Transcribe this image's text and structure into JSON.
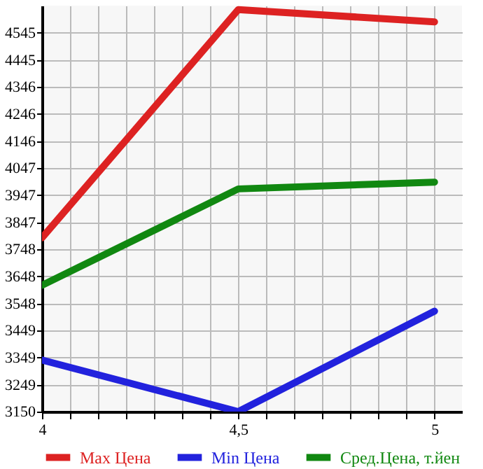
{
  "chart_data": {
    "type": "line",
    "x": [
      4,
      4.5,
      5
    ],
    "series": [
      {
        "name": "Max Цена",
        "color": "#dd2222",
        "values": [
          3790,
          4630,
          4585
        ]
      },
      {
        "name": "Min Цена",
        "color": "#2222dd",
        "values": [
          3340,
          3150,
          3520
        ]
      },
      {
        "name": "Сред.Цена, т.йен",
        "color": "#118811",
        "values": [
          3615,
          3970,
          3995
        ]
      }
    ],
    "xlim": [
      4,
      5.07
    ],
    "xticks": [
      {
        "value": 4,
        "label": "4"
      },
      {
        "value": 4.071,
        "label": null
      },
      {
        "value": 4.143,
        "label": null
      },
      {
        "value": 4.214,
        "label": null
      },
      {
        "value": 4.286,
        "label": null
      },
      {
        "value": 4.357,
        "label": null
      },
      {
        "value": 4.429,
        "label": null
      },
      {
        "value": 4.5,
        "label": "4,5"
      },
      {
        "value": 4.571,
        "label": null
      },
      {
        "value": 4.643,
        "label": null
      },
      {
        "value": 4.714,
        "label": null
      },
      {
        "value": 4.786,
        "label": null
      },
      {
        "value": 4.857,
        "label": null
      },
      {
        "value": 4.929,
        "label": null
      },
      {
        "value": 5,
        "label": "5"
      }
    ],
    "ylim": [
      3150,
      4645
    ],
    "yticks": [
      3150,
      3249,
      3349,
      3449,
      3548,
      3648,
      3748,
      3847,
      3947,
      4047,
      4146,
      4246,
      4346,
      4445,
      4545
    ],
    "grid": true,
    "legend": "bottom",
    "marker": "none",
    "line_style": "solid"
  }
}
